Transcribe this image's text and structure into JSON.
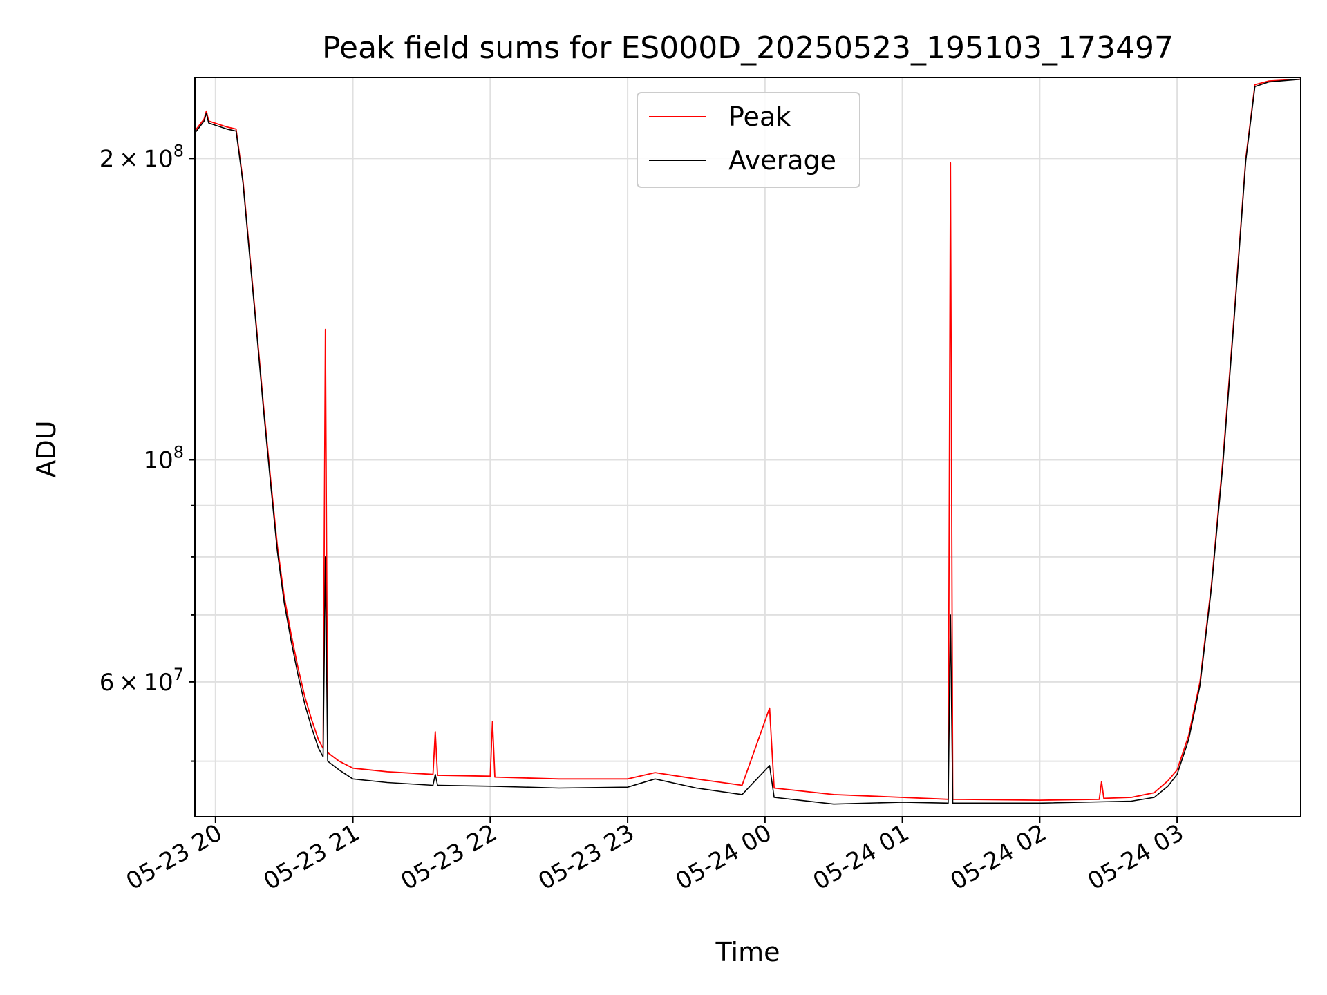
{
  "chart_data": {
    "type": "line",
    "title": "Peak field sums for ES000D_20250523_195103_173497",
    "xlabel": "Time",
    "ylabel": "ADU",
    "x_axis": {
      "type": "time",
      "range": [
        "2025-05-23T19:51",
        "2025-05-24T03:54"
      ],
      "tick_values": [
        "2025-05-23T20:00",
        "2025-05-23T21:00",
        "2025-05-23T22:00",
        "2025-05-23T23:00",
        "2025-05-24T00:00",
        "2025-05-24T01:00",
        "2025-05-24T02:00",
        "2025-05-24T03:00"
      ],
      "tick_labels": [
        "05-23 20",
        "05-23 21",
        "05-23 22",
        "05-23 23",
        "05-24 00",
        "05-24 01",
        "05-24 02",
        "05-24 03"
      ]
    },
    "y_axis": {
      "scale": "log",
      "range": [
        44000000,
        241000000
      ],
      "major_ticks": [
        {
          "value": 200000000,
          "mant": "2",
          "exp": "8"
        },
        {
          "value": 100000000,
          "mant": "",
          "exp": "8"
        },
        {
          "value": 60000000,
          "mant": "6",
          "exp": "7"
        }
      ],
      "minor_ticks": [
        50000000,
        70000000,
        80000000,
        90000000
      ]
    },
    "grid": true,
    "legend": {
      "position": "top-center",
      "entries": [
        "Peak",
        "Average"
      ]
    },
    "series": [
      {
        "name": "Peak",
        "color": "#ff0000",
        "points": [
          [
            "2025-05-23T19:51",
            213000000
          ],
          [
            "2025-05-23T19:55",
            219000000
          ],
          [
            "2025-05-23T19:56",
            223000000
          ],
          [
            "2025-05-23T19:57",
            218000000
          ],
          [
            "2025-05-23T20:05",
            215000000
          ],
          [
            "2025-05-23T20:09",
            214000000
          ],
          [
            "2025-05-23T20:12",
            190000000
          ],
          [
            "2025-05-23T20:15",
            160000000
          ],
          [
            "2025-05-23T20:18",
            135000000
          ],
          [
            "2025-05-23T20:21",
            113000000
          ],
          [
            "2025-05-23T20:24",
            96000000
          ],
          [
            "2025-05-23T20:27",
            82000000
          ],
          [
            "2025-05-23T20:30",
            73000000
          ],
          [
            "2025-05-23T20:33",
            67000000
          ],
          [
            "2025-05-23T20:36",
            62000000
          ],
          [
            "2025-05-23T20:39",
            58000000
          ],
          [
            "2025-05-23T20:42",
            55000000
          ],
          [
            "2025-05-23T20:45",
            52500000
          ],
          [
            "2025-05-23T20:47",
            51500000
          ],
          [
            "2025-05-23T20:48",
            135000000
          ],
          [
            "2025-05-23T20:49",
            51000000
          ],
          [
            "2025-05-23T20:54",
            50000000
          ],
          [
            "2025-05-23T21:00",
            49200000
          ],
          [
            "2025-05-23T21:15",
            48800000
          ],
          [
            "2025-05-23T21:35",
            48500000
          ],
          [
            "2025-05-23T21:36",
            53500000
          ],
          [
            "2025-05-23T21:37",
            48400000
          ],
          [
            "2025-05-23T22:00",
            48300000
          ],
          [
            "2025-05-23T22:01",
            54800000
          ],
          [
            "2025-05-23T22:02",
            48200000
          ],
          [
            "2025-05-23T22:30",
            48000000
          ],
          [
            "2025-05-23T23:00",
            48000000
          ],
          [
            "2025-05-23T23:12",
            48700000
          ],
          [
            "2025-05-23T23:30",
            48000000
          ],
          [
            "2025-05-23T23:50",
            47300000
          ],
          [
            "2025-05-24T00:02",
            56500000
          ],
          [
            "2025-05-24T00:04",
            47000000
          ],
          [
            "2025-05-24T00:30",
            46300000
          ],
          [
            "2025-05-24T01:00",
            46000000
          ],
          [
            "2025-05-24T01:20",
            45800000
          ],
          [
            "2025-05-24T01:21",
            198000000
          ],
          [
            "2025-05-24T01:22",
            45800000
          ],
          [
            "2025-05-24T02:00",
            45700000
          ],
          [
            "2025-05-24T02:26",
            45800000
          ],
          [
            "2025-05-24T02:27",
            47700000
          ],
          [
            "2025-05-24T02:28",
            45900000
          ],
          [
            "2025-05-24T02:40",
            46000000
          ],
          [
            "2025-05-24T02:50",
            46500000
          ],
          [
            "2025-05-24T02:56",
            47800000
          ],
          [
            "2025-05-24T03:00",
            49000000
          ],
          [
            "2025-05-24T03:05",
            53000000
          ],
          [
            "2025-05-24T03:10",
            60000000
          ],
          [
            "2025-05-24T03:15",
            75000000
          ],
          [
            "2025-05-24T03:20",
            100000000
          ],
          [
            "2025-05-24T03:25",
            140000000
          ],
          [
            "2025-05-24T03:30",
            200000000
          ],
          [
            "2025-05-24T03:34",
            237000000
          ],
          [
            "2025-05-24T03:40",
            239000000
          ],
          [
            "2025-05-24T03:54",
            240000000
          ]
        ]
      },
      {
        "name": "Average",
        "color": "#000000",
        "points": [
          [
            "2025-05-23T19:51",
            212000000
          ],
          [
            "2025-05-23T19:55",
            218000000
          ],
          [
            "2025-05-23T19:56",
            222000000
          ],
          [
            "2025-05-23T19:57",
            217000000
          ],
          [
            "2025-05-23T20:05",
            214000000
          ],
          [
            "2025-05-23T20:09",
            213000000
          ],
          [
            "2025-05-23T20:12",
            189000000
          ],
          [
            "2025-05-23T20:15",
            159000000
          ],
          [
            "2025-05-23T20:18",
            134000000
          ],
          [
            "2025-05-23T20:21",
            112000000
          ],
          [
            "2025-05-23T20:24",
            95000000
          ],
          [
            "2025-05-23T20:27",
            81000000
          ],
          [
            "2025-05-23T20:30",
            72000000
          ],
          [
            "2025-05-23T20:33",
            66000000
          ],
          [
            "2025-05-23T20:36",
            61000000
          ],
          [
            "2025-05-23T20:39",
            57000000
          ],
          [
            "2025-05-23T20:42",
            54000000
          ],
          [
            "2025-05-23T20:45",
            51500000
          ],
          [
            "2025-05-23T20:47",
            50500000
          ],
          [
            "2025-05-23T20:48",
            80000000
          ],
          [
            "2025-05-23T20:49",
            50000000
          ],
          [
            "2025-05-23T20:54",
            49000000
          ],
          [
            "2025-05-23T21:00",
            48000000
          ],
          [
            "2025-05-23T21:15",
            47600000
          ],
          [
            "2025-05-23T21:35",
            47300000
          ],
          [
            "2025-05-23T21:36",
            48500000
          ],
          [
            "2025-05-23T21:37",
            47300000
          ],
          [
            "2025-05-23T22:00",
            47200000
          ],
          [
            "2025-05-23T22:30",
            47000000
          ],
          [
            "2025-05-23T23:00",
            47100000
          ],
          [
            "2025-05-23T23:12",
            48000000
          ],
          [
            "2025-05-23T23:30",
            47000000
          ],
          [
            "2025-05-23T23:50",
            46300000
          ],
          [
            "2025-05-24T00:02",
            49500000
          ],
          [
            "2025-05-24T00:04",
            46000000
          ],
          [
            "2025-05-24T00:30",
            45300000
          ],
          [
            "2025-05-24T01:00",
            45500000
          ],
          [
            "2025-05-24T01:20",
            45400000
          ],
          [
            "2025-05-24T01:21",
            70000000
          ],
          [
            "2025-05-24T01:22",
            45400000
          ],
          [
            "2025-05-24T02:00",
            45400000
          ],
          [
            "2025-05-24T02:40",
            45600000
          ],
          [
            "2025-05-24T02:50",
            46000000
          ],
          [
            "2025-05-24T02:56",
            47200000
          ],
          [
            "2025-05-24T03:00",
            48500000
          ],
          [
            "2025-05-24T03:05",
            52500000
          ],
          [
            "2025-05-24T03:10",
            59500000
          ],
          [
            "2025-05-24T03:15",
            74500000
          ],
          [
            "2025-05-24T03:20",
            99000000
          ],
          [
            "2025-05-24T03:25",
            139000000
          ],
          [
            "2025-05-24T03:30",
            199000000
          ],
          [
            "2025-05-24T03:34",
            236000000
          ],
          [
            "2025-05-24T03:40",
            238500000
          ],
          [
            "2025-05-24T03:54",
            240000000
          ]
        ]
      }
    ]
  }
}
